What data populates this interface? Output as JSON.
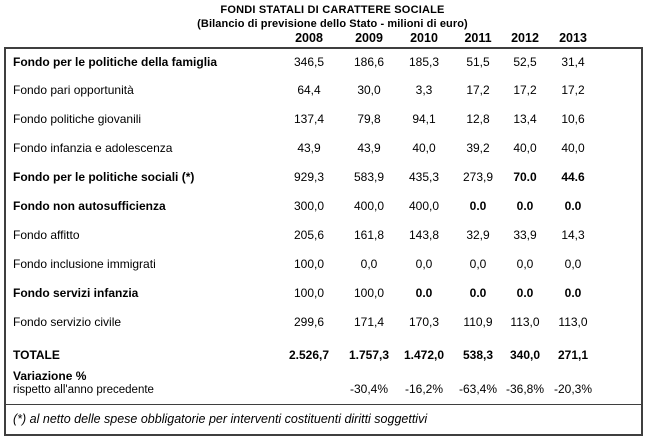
{
  "title": "FONDI STATALI DI CARATTERE SOCIALE",
  "subtitle": "(Bilancio di previsione dello Stato - milioni di euro)",
  "table": {
    "years": [
      "2008",
      "2009",
      "2010",
      "2011",
      "2012",
      "2013"
    ],
    "rows": [
      {
        "label": "Fondo per le politiche della famiglia",
        "values": [
          "346,5",
          "186,6",
          "185,3",
          "51,5",
          "52,5",
          "31,4"
        ]
      },
      {
        "label": "Fondo pari opportunità",
        "values": [
          "64,4",
          "30,0",
          "3,3",
          "17,2",
          "17,2",
          "17,2"
        ]
      },
      {
        "label": "Fondo politiche giovanili",
        "values": [
          "137,4",
          "79,8",
          "94,1",
          "12,8",
          "13,4",
          "10,6"
        ]
      },
      {
        "label": "Fondo infanzia e adolescenza",
        "values": [
          "43,9",
          "43,9",
          "40,0",
          "39,2",
          "40,0",
          "40,0"
        ]
      },
      {
        "label": "Fondo per le politiche sociali (*)",
        "values": [
          "929,3",
          "583,9",
          "435,3",
          "273,9",
          "70.0",
          "44.6"
        ]
      },
      {
        "label": "Fondo non autosufficienza",
        "values": [
          "300,0",
          "400,0",
          "400,0",
          "0.0",
          "0.0",
          "0.0"
        ]
      },
      {
        "label": "Fondo affitto",
        "values": [
          "205,6",
          "161,8",
          "143,8",
          "32,9",
          "33,9",
          "14,3"
        ]
      },
      {
        "label": "Fondo inclusione immigrati",
        "values": [
          "100,0",
          "0,0",
          "0,0",
          "0,0",
          "0,0",
          "0,0"
        ]
      },
      {
        "label": "Fondo servizi infanzia",
        "values": [
          "100,0",
          "100,0",
          "0.0",
          "0.0",
          "0.0",
          "0.0"
        ]
      },
      {
        "label": "Fondo servizio civile",
        "values": [
          "299,6",
          "171,4",
          "170,3",
          "110,9",
          "113,0",
          "113,0"
        ]
      }
    ],
    "total": {
      "label": "TOTALE",
      "values": [
        "2.526,7",
        "1.757,3",
        "1.472,0",
        "538,3",
        "340,0",
        "271,1"
      ]
    },
    "variation": {
      "label_line1": "Variazione %",
      "label_line2": "rispetto all'anno precedente",
      "values": [
        "",
        "-30,4%",
        "-16,2%",
        "-63,4%",
        "-36,8%",
        "-20,3%"
      ]
    },
    "footnote": "(*) al netto delle spese obbligatorie per interventi costituenti diritti soggettivi"
  }
}
